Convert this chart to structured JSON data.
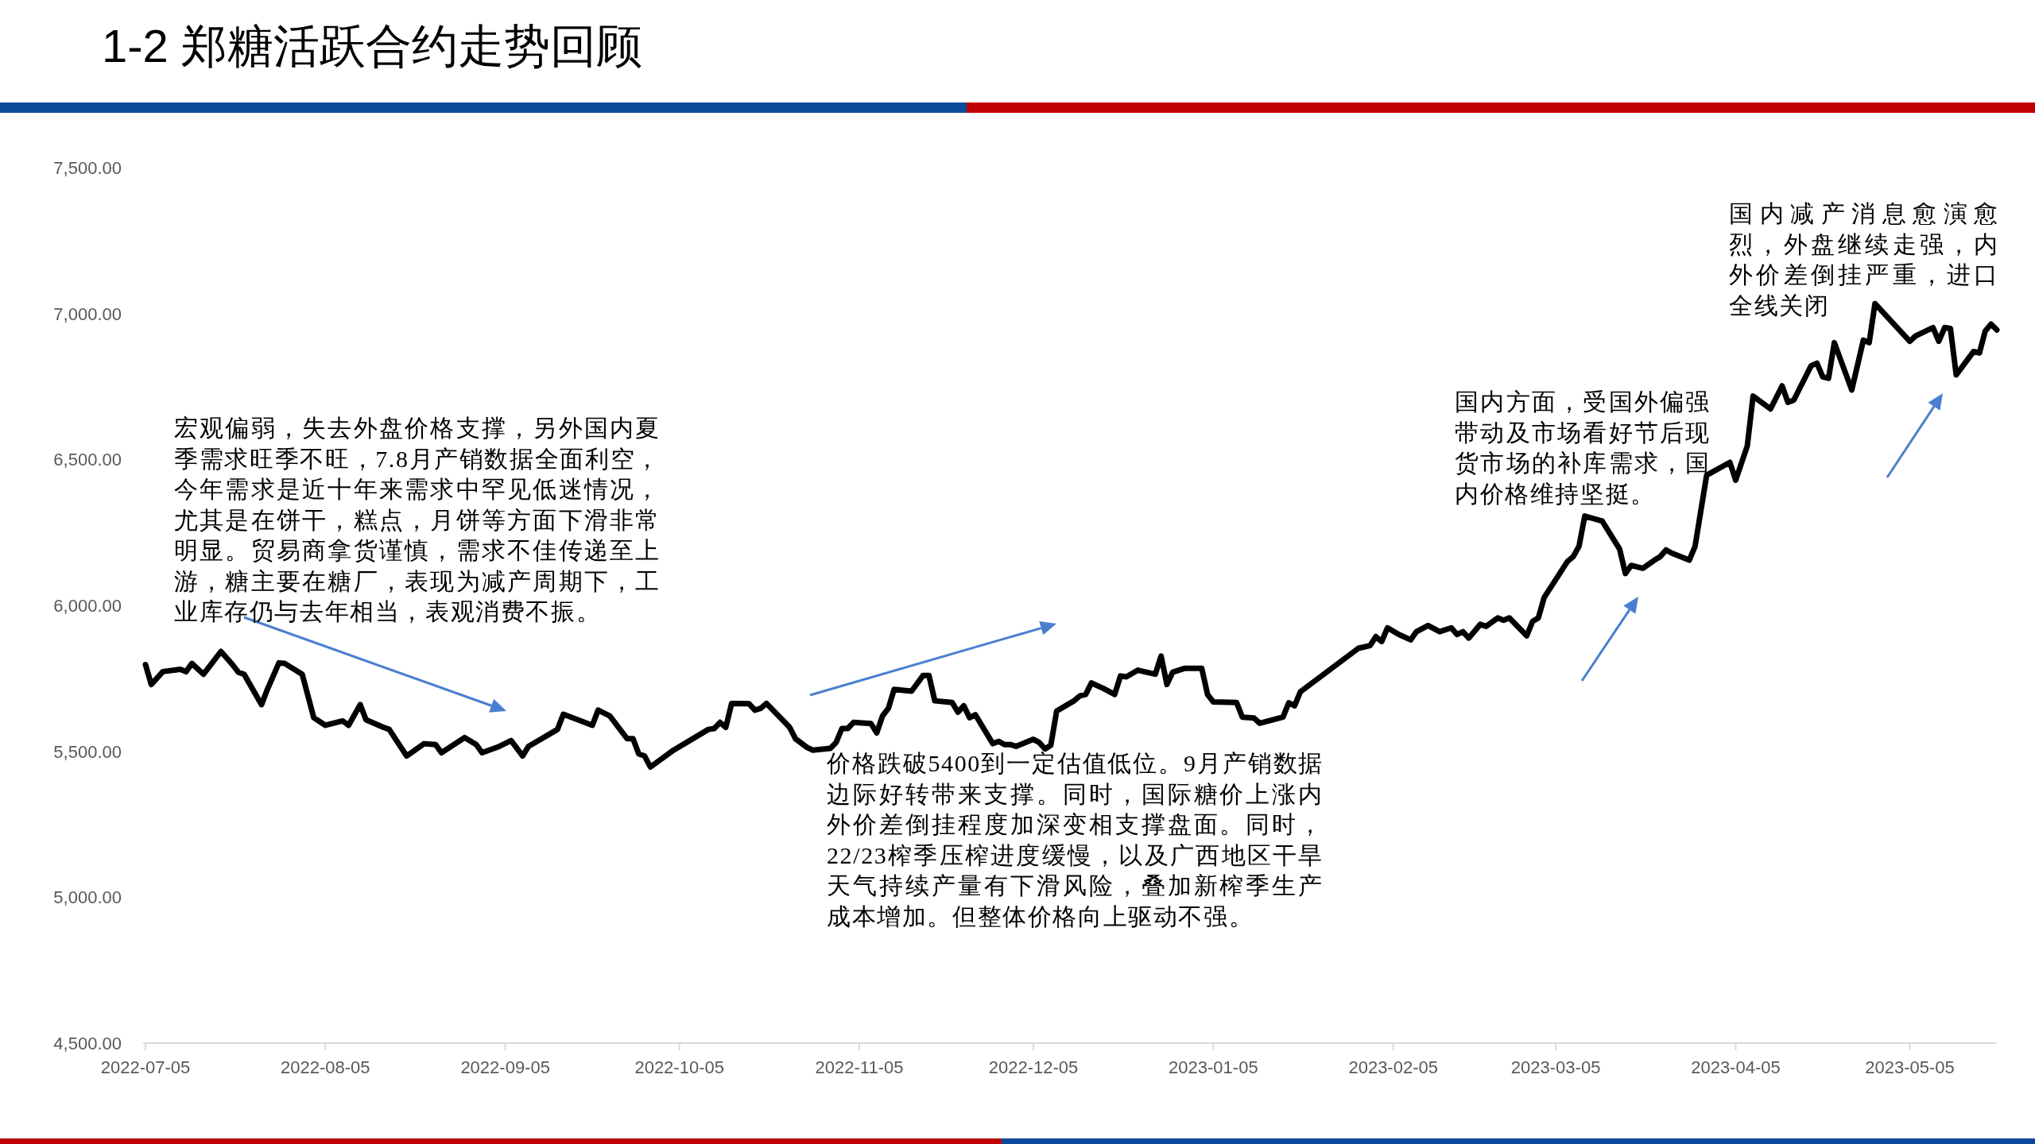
{
  "chart_data": {
    "type": "line",
    "title": "1-2 郑糖活跃合约走势回顾",
    "x": [
      "2022-07-05",
      "2022-07-06",
      "2022-07-08",
      "2022-07-11",
      "2022-07-12",
      "2022-07-13",
      "2022-07-15",
      "2022-07-18",
      "2022-07-20",
      "2022-07-21",
      "2022-07-22",
      "2022-07-25",
      "2022-07-26",
      "2022-07-28",
      "2022-07-29",
      "2022-08-01",
      "2022-08-03",
      "2022-08-05",
      "2022-08-08",
      "2022-08-09",
      "2022-08-11",
      "2022-08-12",
      "2022-08-15",
      "2022-08-16",
      "2022-08-19",
      "2022-08-22",
      "2022-08-24",
      "2022-08-25",
      "2022-08-29",
      "2022-08-31",
      "2022-09-01",
      "2022-09-04",
      "2022-09-06",
      "2022-09-08",
      "2022-09-09",
      "2022-09-14",
      "2022-09-15",
      "2022-09-20",
      "2022-09-21",
      "2022-09-23",
      "2022-09-26",
      "2022-09-27",
      "2022-09-28",
      "2022-09-29",
      "2022-09-30",
      "2022-10-04",
      "2022-10-10",
      "2022-10-11",
      "2022-10-12",
      "2022-10-13",
      "2022-10-14",
      "2022-10-17",
      "2022-10-18",
      "2022-10-19",
      "2022-10-20",
      "2022-10-24",
      "2022-10-25",
      "2022-10-27",
      "2022-10-28",
      "2022-10-31",
      "2022-11-01",
      "2022-11-02",
      "2022-11-03",
      "2022-11-04",
      "2022-11-07",
      "2022-11-08",
      "2022-11-09",
      "2022-11-10",
      "2022-11-11",
      "2022-11-14",
      "2022-11-16",
      "2022-11-17",
      "2022-11-18",
      "2022-11-21",
      "2022-11-22",
      "2022-11-23",
      "2022-11-24",
      "2022-11-25",
      "2022-11-28",
      "2022-11-29",
      "2022-11-30",
      "2022-12-01",
      "2022-12-02",
      "2022-12-05",
      "2022-12-06",
      "2022-12-07",
      "2022-12-08",
      "2022-12-09",
      "2022-12-12",
      "2022-12-13",
      "2022-12-14",
      "2022-12-15",
      "2022-12-17",
      "2022-12-19",
      "2022-12-20",
      "2022-12-21",
      "2022-12-23",
      "2022-12-26",
      "2022-12-27",
      "2022-12-28",
      "2022-12-29",
      "2022-12-31",
      "2023-01-03",
      "2023-01-04",
      "2023-01-05",
      "2023-01-09",
      "2023-01-10",
      "2023-01-12",
      "2023-01-13",
      "2023-01-17",
      "2023-01-18",
      "2023-01-19",
      "2023-01-20",
      "2023-01-30",
      "2023-02-01",
      "2023-02-02",
      "2023-02-03",
      "2023-02-04",
      "2023-02-06",
      "2023-02-08",
      "2023-02-09",
      "2023-02-11",
      "2023-02-13",
      "2023-02-15",
      "2023-02-16",
      "2023-02-17",
      "2023-02-18",
      "2023-02-20",
      "2023-02-21",
      "2023-02-23",
      "2023-02-24",
      "2023-02-25",
      "2023-02-28",
      "2023-03-01",
      "2023-03-02",
      "2023-03-03",
      "2023-03-07",
      "2023-03-08",
      "2023-03-09",
      "2023-03-10",
      "2023-03-13",
      "2023-03-16",
      "2023-03-17",
      "2023-03-18",
      "2023-03-20",
      "2023-03-22",
      "2023-03-23",
      "2023-03-24",
      "2023-03-25",
      "2023-03-28",
      "2023-03-29",
      "2023-03-31",
      "2023-04-04",
      "2023-04-05",
      "2023-04-07",
      "2023-04-08",
      "2023-04-11",
      "2023-04-13",
      "2023-04-14",
      "2023-04-15",
      "2023-04-18",
      "2023-04-19",
      "2023-04-20",
      "2023-04-21",
      "2023-04-22",
      "2023-04-25",
      "2023-04-27",
      "2023-04-28",
      "2023-04-29",
      "2023-05-05",
      "2023-05-06",
      "2023-05-09",
      "2023-05-10",
      "2023-05-11",
      "2023-05-12",
      "2023-05-13",
      "2023-05-16",
      "2023-05-17",
      "2023-05-18",
      "2023-05-19",
      "2023-05-20"
    ],
    "values": [
      5797,
      5729,
      5773,
      5781,
      5773,
      5801,
      5764,
      5842,
      5797,
      5771,
      5764,
      5660,
      5712,
      5803,
      5801,
      5764,
      5615,
      5589,
      5604,
      5589,
      5660,
      5608,
      5582,
      5575,
      5484,
      5526,
      5523,
      5495,
      5547,
      5523,
      5495,
      5517,
      5537,
      5484,
      5517,
      5575,
      5627,
      5589,
      5641,
      5621,
      5543,
      5543,
      5491,
      5484,
      5446,
      5504,
      5575,
      5578,
      5599,
      5582,
      5664,
      5663,
      5641,
      5647,
      5664,
      5582,
      5543,
      5513,
      5504,
      5510,
      5530,
      5578,
      5578,
      5599,
      5595,
      5563,
      5621,
      5647,
      5712,
      5706,
      5760,
      5760,
      5673,
      5667,
      5634,
      5656,
      5615,
      5625,
      5526,
      5534,
      5523,
      5523,
      5517,
      5541,
      5530,
      5508,
      5521,
      5638,
      5673,
      5690,
      5695,
      5734,
      5716,
      5695,
      5758,
      5755,
      5778,
      5764,
      5826,
      5729,
      5771,
      5784,
      5784,
      5695,
      5669,
      5667,
      5617,
      5614,
      5596,
      5617,
      5666,
      5656,
      5704,
      5853,
      5862,
      5893,
      5876,
      5923,
      5900,
      5882,
      5910,
      5931,
      5910,
      5923,
      5900,
      5910,
      5888,
      5935,
      5928,
      5957,
      5949,
      5957,
      5896,
      5945,
      5957,
      6027,
      6150,
      6167,
      6202,
      6306,
      6289,
      6193,
      6109,
      6137,
      6127,
      6155,
      6167,
      6190,
      6179,
      6155,
      6202,
      6446,
      6490,
      6429,
      6546,
      6717,
      6673,
      6752,
      6696,
      6703,
      6821,
      6830,
      6783,
      6778,
      6900,
      6738,
      6909,
      6900,
      7034,
      6905,
      6923,
      6952,
      6905,
      6952,
      6949,
      6790,
      6870,
      6865,
      6940,
      6964,
      6944
    ],
    "color": "#000000",
    "xlim": [
      "2022-07-05",
      "2023-05-20"
    ],
    "xticks": [
      "2022-07-05",
      "2022-08-05",
      "2022-09-05",
      "2022-10-05",
      "2022-11-05",
      "2022-12-05",
      "2023-01-05",
      "2023-02-05",
      "2023-03-05",
      "2023-04-05",
      "2023-05-05"
    ],
    "ylim": [
      4500,
      7500
    ],
    "yticks": [
      {
        "value": 4500,
        "label": "4,500.00"
      },
      {
        "value": 5000,
        "label": "5,000.00"
      },
      {
        "value": 5500,
        "label": "5,500.00"
      },
      {
        "value": 6000,
        "label": "6,000.00"
      },
      {
        "value": 6500,
        "label": "6,500.00"
      },
      {
        "value": 7000,
        "label": "7,000.00"
      },
      {
        "value": 7500,
        "label": "7,500.00"
      }
    ],
    "annotations": [
      "宏观偏弱，失去外盘价格支撑，另外国内夏季需求旺季不旺，7.8月产销数据全面利空，今年需求是近十年来需求中罕见低迷情况，尤其是在饼干，糕点，月饼等方面下滑非常明显。贸易商拿货谨慎，需求不佳传递至上游，糖主要在糖厂，表现为减产周期下，工业库存仍与去年相当，表观消费不振。",
      "价格跌破5400到一定估值低位。9月产销数据边际好转带来支撑。同时，国际糖价上涨内外价差倒挂程度加深变相支撑盘面。同时，22/23榨季压榨进度缓慢，以及广西地区干旱天气持续产量有下滑风险，叠加新榨季生产成本增加。但整体价格向上驱动不强。",
      "国内方面，受国外偏强带动及市场看好节后现货市场的补库需求，国内价格维持坚挺。",
      "国内减产消息愈演愈烈，外盘继续走强，内外价差倒挂严重，进口全线关闭"
    ]
  }
}
